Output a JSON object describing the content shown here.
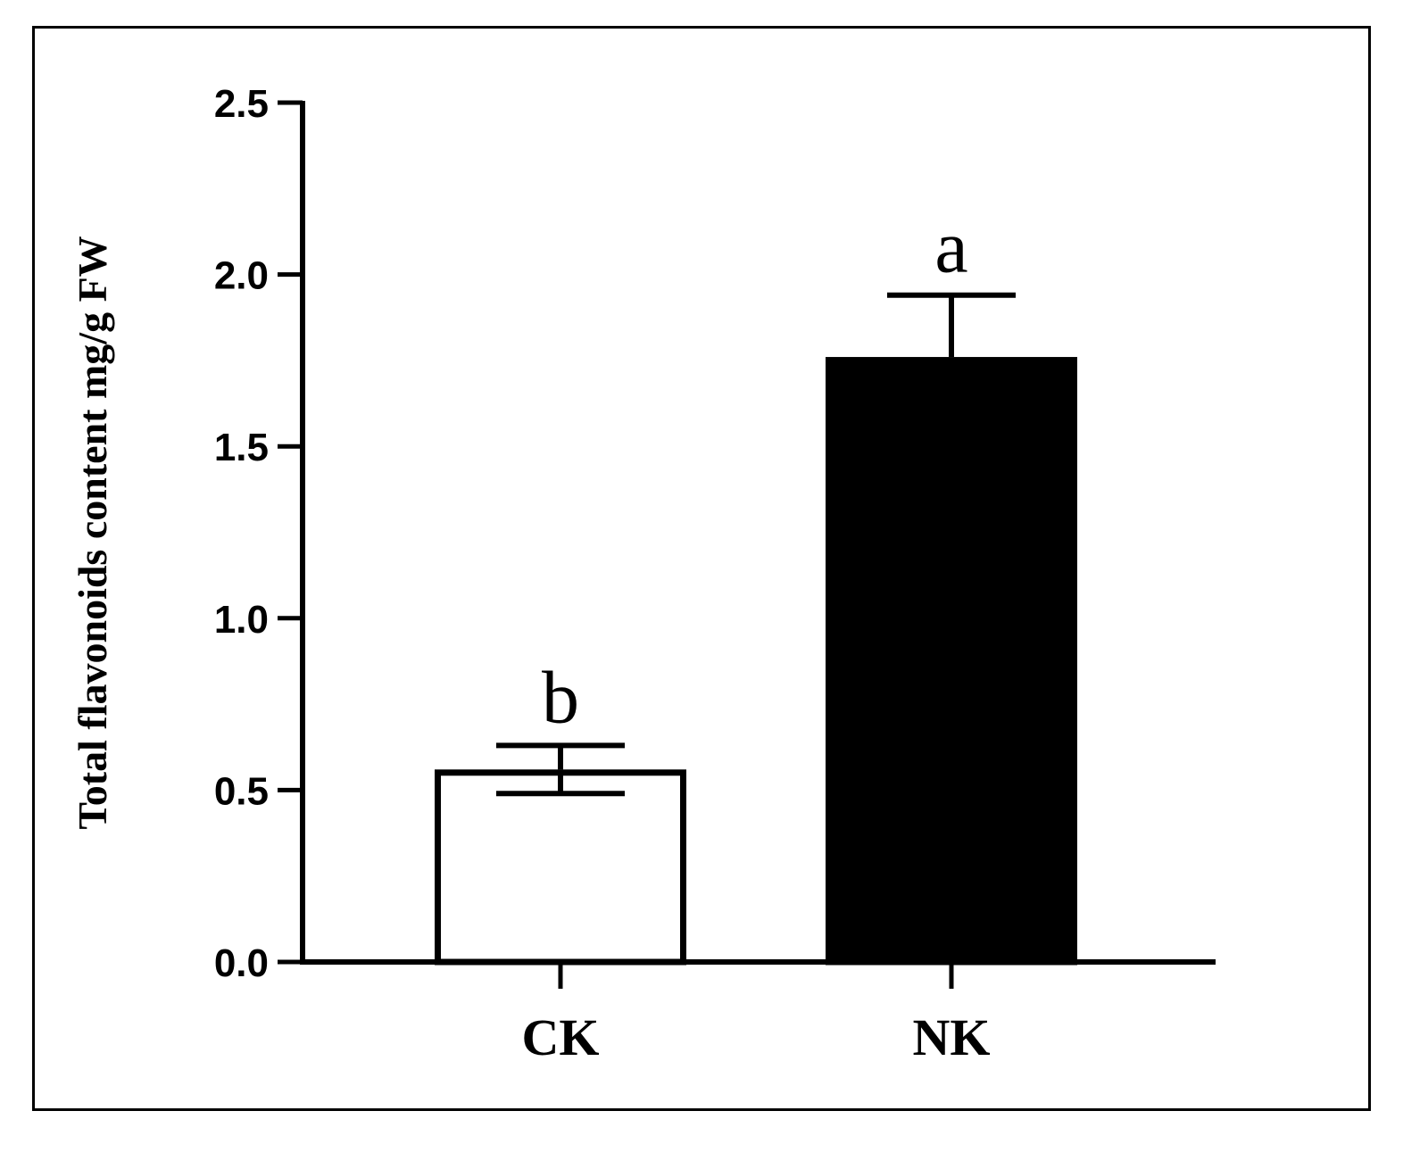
{
  "chart_data": {
    "type": "bar",
    "title": "",
    "xlabel": "",
    "ylabel": "Total flavonoids content mg/g FW",
    "ylim": [
      0,
      2.5
    ],
    "yticks": [
      "0.0",
      "0.5",
      "1.0",
      "1.5",
      "2.0",
      "2.5"
    ],
    "categories": [
      "CK",
      "NK"
    ],
    "values": [
      0.56,
      1.76
    ],
    "errors": [
      0.07,
      0.18
    ],
    "significance": [
      "b",
      "a"
    ],
    "bar_fills": [
      "#ffffff",
      "#000000"
    ],
    "grid": false
  }
}
